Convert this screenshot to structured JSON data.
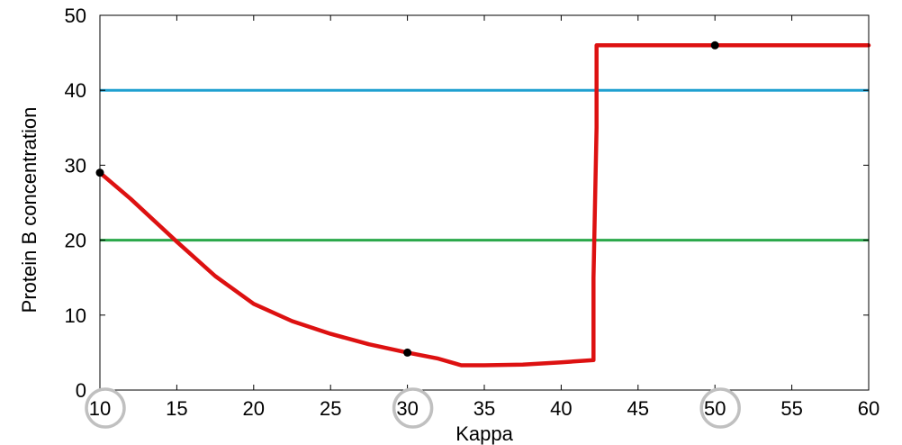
{
  "chart_data": {
    "type": "line",
    "title": "",
    "xlabel": "Kappa",
    "ylabel": "Protein B concentration",
    "xlim": [
      10,
      60
    ],
    "ylim": [
      0,
      50
    ],
    "xticks": [
      10,
      15,
      20,
      25,
      30,
      35,
      40,
      45,
      50,
      55,
      60
    ],
    "yticks": [
      0,
      10,
      20,
      30,
      40,
      50
    ],
    "grid": false,
    "legend": "none",
    "series": [
      {
        "color": "#dd1111",
        "points": [
          [
            10,
            29
          ],
          [
            12,
            25.5
          ],
          [
            15,
            19.8
          ],
          [
            17.5,
            15.2
          ],
          [
            20,
            11.5
          ],
          [
            22.5,
            9.2
          ],
          [
            25,
            7.5
          ],
          [
            27.5,
            6.1
          ],
          [
            30,
            5.0
          ],
          [
            32,
            4.2
          ],
          [
            33.5,
            3.3
          ],
          [
            35,
            3.3
          ],
          [
            37.5,
            3.4
          ],
          [
            40,
            3.7
          ],
          [
            42.1,
            4.0
          ],
          [
            42.1,
            15
          ],
          [
            42.3,
            35
          ],
          [
            42.3,
            46
          ],
          [
            50,
            46
          ],
          [
            60,
            46
          ]
        ]
      }
    ],
    "reference_lines": [
      {
        "y": 40,
        "color": "#1fa0d0"
      },
      {
        "y": 20,
        "color": "#2aa84a"
      }
    ],
    "markers": [
      {
        "x": 10,
        "y": 29
      },
      {
        "x": 30,
        "y": 5
      },
      {
        "x": 50,
        "y": 46
      }
    ],
    "highlighted_ticks": [
      10,
      30,
      50
    ],
    "marker_color": "#000000",
    "highlight_color": "#c0c0c0"
  }
}
